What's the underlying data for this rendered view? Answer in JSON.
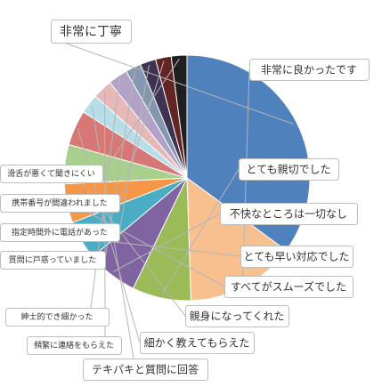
{
  "chart_data": {
    "type": "pie",
    "title": "",
    "slices": [
      {
        "label": "非常に丁寧",
        "value": 34.0,
        "color": "#4f81bd"
      },
      {
        "label": "非常に良かったです",
        "value": 14.0,
        "color": "#f9c08f"
      },
      {
        "label": "とても親切でした",
        "value": 7.5,
        "color": "#9bbb59"
      },
      {
        "label": "不快なところは一切なし",
        "value": 6.5,
        "color": "#8064a2"
      },
      {
        "label": "とても早い対応でした",
        "value": 5.0,
        "color": "#4bacc6"
      },
      {
        "label": "すべてがスムーズでした",
        "value": 5.0,
        "color": "#f79646"
      },
      {
        "label": "親身になってくれた",
        "value": 5.0,
        "color": "#a8d08d"
      },
      {
        "label": "細かく教えてもらえた",
        "value": 4.5,
        "color": "#d77776"
      },
      {
        "label": "テキパキと質問に回答",
        "value": 2.5,
        "color": "#b7dee8"
      },
      {
        "label": "頻繁に連絡をもらえた",
        "value": 2.5,
        "color": "#e6b9b8"
      },
      {
        "label": "紳士的でき細かった",
        "value": 2.5,
        "color": "#b3a2c7"
      },
      {
        "label": "質問に戸惑っていました",
        "value": 2.0,
        "color": "#8497b0"
      },
      {
        "label": "指定時間外に電話があった",
        "value": 2.0,
        "color": "#3f3151"
      },
      {
        "label": "携帯番号が間違われました",
        "value": 2.0,
        "color": "#632523"
      },
      {
        "label": "滑舌が悪くて聞きにくい",
        "value": 2.0,
        "color": "#1f1f1f"
      }
    ],
    "legend": "none"
  }
}
